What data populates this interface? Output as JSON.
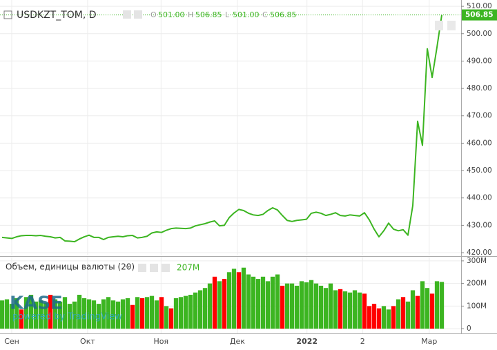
{
  "chart_data": {
    "type": "line",
    "symbol": "USDKZT_TOM, D",
    "ohlc": [
      {
        "name": "O",
        "value": 501,
        "label": "501.00"
      },
      {
        "name": "H",
        "value": 506.85,
        "label": "506.85"
      },
      {
        "name": "L",
        "value": 501,
        "label": "501.00"
      },
      {
        "name": "C",
        "value": 506.85,
        "label": "506.85"
      }
    ],
    "watermark": "KASE",
    "powered_by": "powered by TradingView",
    "xlim": [
      -0.43,
      95
    ],
    "xticks": [
      {
        "value": 2,
        "label": "Сен"
      },
      {
        "value": 17.7,
        "label": "Окт"
      },
      {
        "value": 32.9,
        "label": "Ноя"
      },
      {
        "value": 48.7,
        "label": "Дек"
      },
      {
        "value": 63.1,
        "label": "2022"
      },
      {
        "value": 74.6,
        "label": "2"
      },
      {
        "value": 88.4,
        "label": "Мар"
      }
    ],
    "ylim": [
      419,
      512.3
    ],
    "yticks": [
      {
        "value": 420,
        "label": "420.00"
      },
      {
        "value": 430,
        "label": "430.00"
      },
      {
        "value": 440,
        "label": "440.00"
      },
      {
        "value": 450,
        "label": "450.00"
      },
      {
        "value": 460,
        "label": "460.00"
      },
      {
        "value": 470,
        "label": "470.00"
      },
      {
        "value": 480,
        "label": "480.00"
      },
      {
        "value": 490,
        "label": "490.00"
      },
      {
        "value": 500,
        "label": "500.00"
      },
      {
        "value": 510,
        "label": "510.00"
      }
    ],
    "grid": true,
    "series": [
      {
        "name": "USDKZT_TOM",
        "color": "#3cb521",
        "values": [
          425.6,
          425.4,
          425.2,
          425.8,
          426.2,
          426.3,
          426.3,
          426.2,
          426.3,
          426.0,
          425.8,
          425.4,
          425.6,
          424.3,
          424.2,
          424.0,
          425.0,
          425.8,
          426.4,
          425.6,
          425.6,
          424.8,
          425.6,
          425.8,
          426.0,
          425.8,
          426.2,
          426.3,
          425.4,
          425.6,
          426.0,
          427.2,
          427.6,
          427.4,
          428.2,
          428.8,
          429.0,
          428.9,
          428.8,
          429.0,
          429.8,
          430.2,
          430.6,
          431.2,
          431.6,
          429.8,
          430.0,
          432.8,
          434.5,
          435.8,
          435.4,
          434.4,
          433.8,
          433.6,
          434.0,
          435.4,
          436.4,
          435.6,
          433.6,
          431.8,
          431.4,
          431.8,
          432.0,
          432.2,
          434.4,
          434.8,
          434.4,
          433.6,
          434.0,
          434.6,
          433.6,
          433.4,
          433.8,
          433.6,
          433.4,
          434.6,
          432.0,
          428.6,
          425.8,
          428.0,
          430.8,
          428.6,
          428.0,
          428.4,
          426.4,
          437.2,
          468.0,
          459.2,
          494.5,
          484.0,
          495.0,
          506.85
        ]
      }
    ],
    "volume": {
      "name": "Объем, единицы валюты (20)",
      "last_label": "207M",
      "ylim": [
        -21,
        318
      ],
      "yticks": [
        0,
        {
          "value": 100,
          "label": "100M"
        },
        {
          "value": 200,
          "label": "200M"
        },
        {
          "value": 300,
          "label": "300M"
        }
      ],
      "values": [
        125,
        130,
        110,
        135,
        85,
        140,
        150,
        120,
        125,
        115,
        150,
        130,
        120,
        140,
        110,
        120,
        150,
        135,
        130,
        125,
        110,
        130,
        140,
        125,
        120,
        130,
        135,
        105,
        140,
        135,
        140,
        145,
        125,
        140,
        100,
        90,
        135,
        140,
        145,
        150,
        160,
        170,
        180,
        200,
        230,
        210,
        220,
        250,
        265,
        250,
        270,
        240,
        230,
        220,
        230,
        210,
        230,
        240,
        190,
        200,
        200,
        190,
        210,
        205,
        215,
        200,
        190,
        180,
        200,
        170,
        175,
        165,
        160,
        170,
        160,
        155,
        100,
        110,
        90,
        100,
        85,
        100,
        130,
        140,
        120,
        170,
        145,
        210,
        180,
        155,
        210,
        207
      ],
      "up_color": "#3cb521",
      "down_color": "#ff0000",
      "down": [
        4,
        10,
        27,
        29,
        33,
        35,
        44,
        46,
        49,
        58,
        70,
        75,
        76,
        77,
        78,
        81,
        83,
        86,
        89
      ]
    }
  }
}
